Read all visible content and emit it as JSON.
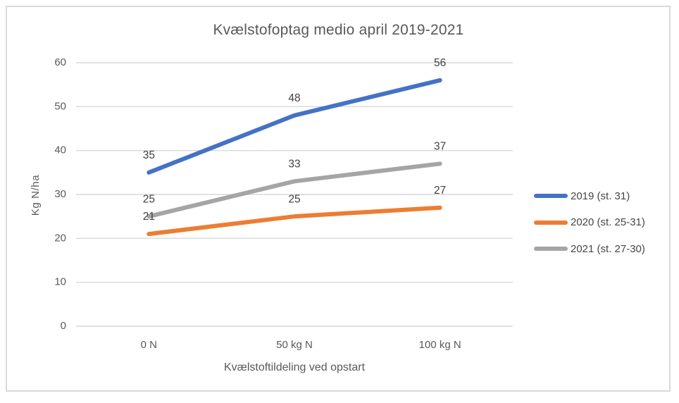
{
  "chart_data": {
    "type": "line",
    "title": "Kvælstofoptag medio april 2019-2021",
    "categories": [
      "0 N",
      "50 kg N",
      "100 kg N"
    ],
    "series": [
      {
        "name": "2019 (st. 31)",
        "color": "#4472C4",
        "values": [
          35,
          48,
          56
        ]
      },
      {
        "name": "2020 (st. 25-31)",
        "color": "#ED7D31",
        "values": [
          21,
          25,
          27
        ]
      },
      {
        "name": "2021 (st. 27-30)",
        "color": "#A5A5A5",
        "values": [
          25,
          33,
          37
        ]
      }
    ],
    "xlabel": "Kvælstoftildeling ved opstart",
    "ylabel": "Kg N/ha",
    "ylim": [
      0,
      60
    ],
    "ytick_step": 10,
    "yticks": [
      0,
      10,
      20,
      30,
      40,
      50,
      60
    ],
    "grid": true,
    "data_labels": true,
    "legend_position": "right"
  },
  "colors": {
    "grid": "#D9D9D9",
    "border": "#D9D9D9",
    "axis_text": "#595959",
    "data_label_text": "#404040",
    "title_text": "#595959"
  }
}
